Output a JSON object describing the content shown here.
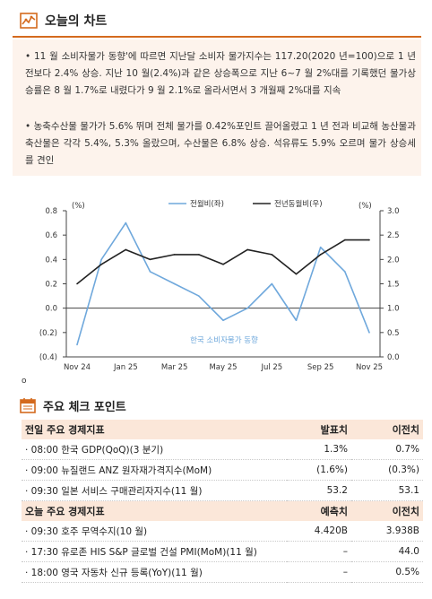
{
  "header": {
    "icon": "chart-icon",
    "title": "오늘의 차트"
  },
  "summary": {
    "bullets": [
      "• 11 월 소비자물가 동향'에 따르면 지난달 소비자 물가지수는 117.20(2020 년=100)으로 1 년 전보다 2.4% 상승. 지난 10 월(2.4%)과 같은 상승폭으로 지난 6~7 월 2%대를 기록했던 물가상승률은 8 월 1.7%로 내렸다가 9 월 2.1%로 올라서면서 3 개월째 2%대를 지속",
      "• 농축수산물 물가가 5.6% 뛰며 전체 물가를 0.42%포인트 끌어올렸고 1 년 전과 비교해 농산물과 축산물은 각각 5.4%, 5.3% 올랐으며, 수산물은 6.8% 상승. 석유류도 5.9% 오르며 물가 상승세를 견인"
    ]
  },
  "chart_data": {
    "type": "line",
    "x": [
      "Nov 24",
      "Dec 24",
      "Jan 25",
      "Feb 25",
      "Mar 25",
      "Apr 25",
      "May 25",
      "Jun 25",
      "Jul 25",
      "Aug 25",
      "Sep 25",
      "Oct 25",
      "Nov 25"
    ],
    "x_tick_labels": [
      "Nov 24",
      "Jan 25",
      "Mar 25",
      "May 25",
      "Jul 25",
      "Sep 25",
      "Nov 25"
    ],
    "series": [
      {
        "name": "전월비(좌)",
        "axis": "left",
        "color": "#6fa8dc",
        "values": [
          -0.3,
          0.4,
          0.7,
          0.3,
          0.2,
          0.1,
          -0.1,
          0.0,
          0.2,
          -0.1,
          0.5,
          0.3,
          -0.2
        ]
      },
      {
        "name": "전년동월비(우)",
        "axis": "right",
        "color": "#222222",
        "values": [
          1.5,
          1.9,
          2.2,
          2.0,
          2.1,
          2.1,
          1.9,
          2.2,
          2.1,
          1.7,
          2.1,
          2.4,
          2.4
        ]
      }
    ],
    "ylim_left": [
      -0.4,
      0.8
    ],
    "yticks_left": [
      "0.8",
      "0.6",
      "0.4",
      "0.2",
      "0.0",
      "(0.2)",
      "(0.4)"
    ],
    "ylim_right": [
      0.0,
      3.0
    ],
    "yticks_right": [
      "3.0",
      "2.5",
      "2.0",
      "1.5",
      "1.0",
      "0.5",
      "0.0"
    ],
    "ylabel_left": "(%)",
    "ylabel_right": "(%)",
    "annotation": "한국 소비자물가 동향",
    "legend_position": "top",
    "grid": false
  },
  "footnote_mark": "o",
  "checkpoints": {
    "icon": "calendar-icon",
    "title": "주요 체크 포인트",
    "yesterday": {
      "header": [
        "전일 주요 경제지표",
        "발표치",
        "이전치"
      ],
      "rows": [
        [
          "· 08:00 한국 GDP(QoQ)(3 분기)",
          "1.3%",
          "0.7%"
        ],
        [
          "· 09:00 뉴질랜드 ANZ 원자재가격지수(MoM)",
          "(1.6%)",
          "(0.3%)"
        ],
        [
          "· 09:30 일본 서비스 구매관리자지수(11 월)",
          "53.2",
          "53.1"
        ]
      ]
    },
    "today": {
      "header": [
        "오늘 주요 경제지표",
        "예측치",
        "이전치"
      ],
      "rows": [
        [
          "· 09:30 호주 무역수지(10 월)",
          "4.420B",
          "3.938B"
        ],
        [
          "· 17:30 유로존 HIS S&P 글로벌 건설 PMI(MoM)(11 월)",
          "–",
          "44.0"
        ],
        [
          "· 18:00 영국 자동차 신규 등록(YoY)(11 월)",
          "–",
          "0.5%"
        ]
      ]
    }
  },
  "colors": {
    "accent": "#d46a1e",
    "summary_bg": "#fdf3ec",
    "table_head_bg": "#fbe7d9"
  }
}
